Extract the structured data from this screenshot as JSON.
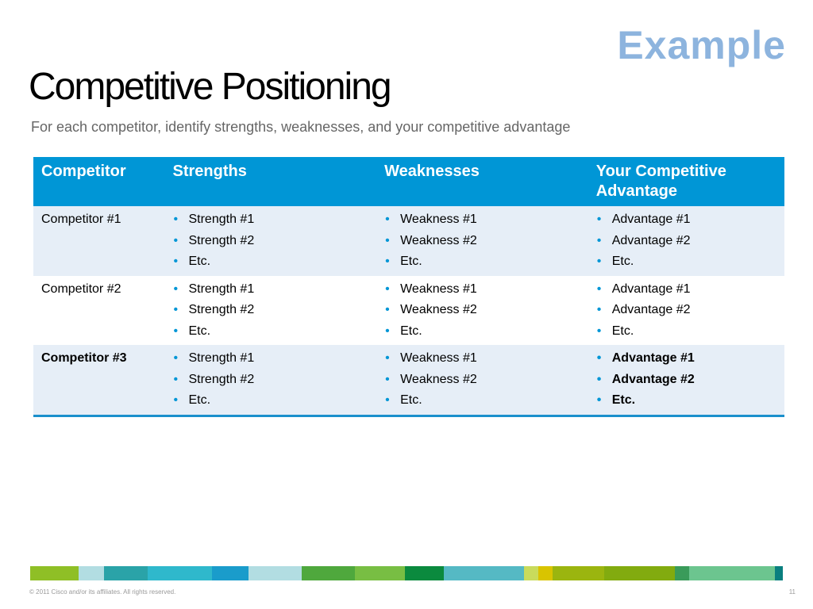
{
  "slide": {
    "example_label": "Example",
    "title": "Competitive Positioning",
    "subtitle": "For each competitor, identify strengths, weaknesses, and your competitive advantage",
    "footer": "© 2011 Cisco and/or its affiliates. All rights reserved.",
    "page_number": "11"
  },
  "table": {
    "headers": [
      "Competitor",
      "Strengths",
      "Weaknesses",
      "Your Competitive Advantage"
    ],
    "rows": [
      {
        "competitor": "Competitor #1",
        "strengths": [
          "Strength #1",
          "Strength #2",
          "Etc."
        ],
        "weaknesses": [
          "Weakness #1",
          "Weakness #2",
          "Etc."
        ],
        "advantages": [
          "Advantage #1",
          "Advantage #2",
          "Etc."
        ]
      },
      {
        "competitor": "Competitor #2",
        "strengths": [
          "Strength #1",
          "Strength #2",
          "Etc."
        ],
        "weaknesses": [
          "Weakness #1",
          "Weakness #2",
          "Etc."
        ],
        "advantages": [
          "Advantage #1",
          "Advantage #2",
          "Etc."
        ]
      },
      {
        "competitor": "Competitor #3",
        "strengths": [
          "Strength #1",
          "Strength #2",
          "Etc."
        ],
        "weaknesses": [
          "Weakness #1",
          "Weakness #2",
          "Etc."
        ],
        "advantages": [
          "Advantage #1",
          "Advantage #2",
          "Etc."
        ]
      }
    ],
    "bullet": "•"
  },
  "colors": {
    "header_bg": "#0096d6",
    "shade_row": "#e6eef7",
    "example_label": "#8db4de",
    "strip": [
      "#8fbf26",
      "#b2dde2",
      "#2aa3a8",
      "#2fb8cc",
      "#1a9ccb",
      "#b2dde2",
      "#4fa83d",
      "#78be43",
      "#0b8a3e",
      "#55b9c4",
      "#c9db5c",
      "#d9c400",
      "#9bb50f",
      "#82ab0f",
      "#3a9b5a",
      "#6cc58f",
      "#0a7f7f"
    ]
  }
}
